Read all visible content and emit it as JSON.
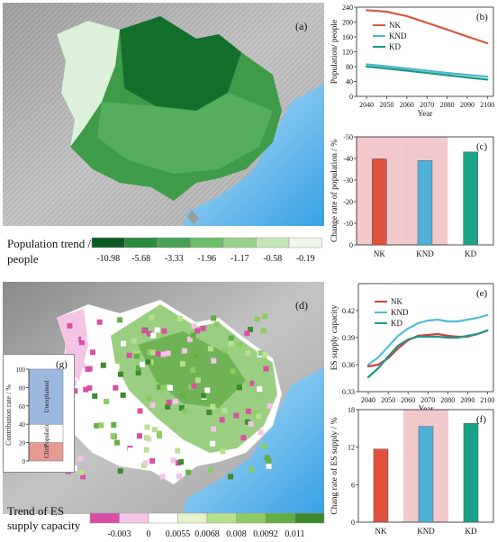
{
  "panels": {
    "a": "(a)",
    "b": "(b)",
    "c": "(c)",
    "d": "(d)",
    "e": "(e)",
    "f": "(f)",
    "g": "(g)"
  },
  "legend_pop": {
    "title_line1": "Population trend /",
    "title_line2": "people",
    "colors": [
      "#0b5a24",
      "#2b8a3e",
      "#46a055",
      "#6cbd6a",
      "#98d38c",
      "#c5e6bb",
      "#eef7ea"
    ],
    "ticks": [
      "-10.98",
      "-5.68",
      "-3.33",
      "-1.96",
      "-1.17",
      "-0.58",
      "-0.19"
    ]
  },
  "legend_es": {
    "title_line1": "Trend of ES",
    "title_line2": "supply capacity",
    "colors": [
      "#d94fa6",
      "#f6c4e6",
      "#ffffff",
      "#e4f2c8",
      "#b9e08f",
      "#8ccc62",
      "#63ae43",
      "#3b8a2c"
    ],
    "ticks": [
      "-0.003",
      "0",
      "0.0055",
      "0.0068",
      "0.008",
      "0.0092",
      "0.011"
    ]
  },
  "inset_g": {
    "ylabel": "Contribution rate / %",
    "ticks": [
      "0",
      "20",
      "40",
      "60",
      "80",
      "100"
    ],
    "segments": [
      {
        "label": "Clim",
        "value": 20,
        "color": "#e59a94"
      },
      {
        "label": "Population",
        "value": 20,
        "color": "#ffffff"
      },
      {
        "label": "Unexplained",
        "value": 60,
        "color": "#9db7df"
      }
    ]
  },
  "chart_data": [
    {
      "panel": "b",
      "type": "line",
      "xlabel": "Year",
      "ylabel": "Population/ people",
      "xlim": [
        2035,
        2103
      ],
      "ylim": [
        0,
        240
      ],
      "xticks": [
        2040,
        2050,
        2060,
        2070,
        2080,
        2090,
        2100
      ],
      "yticks": [
        0,
        40,
        80,
        120,
        160,
        200,
        240
      ],
      "legend_position": "top-right",
      "series": [
        {
          "name": "NK",
          "color": "#d65a44",
          "x": [
            2040,
            2050,
            2060,
            2070,
            2080,
            2090,
            2100
          ],
          "y": [
            232,
            228,
            216,
            198,
            180,
            161,
            143
          ]
        },
        {
          "name": "KND",
          "color": "#4fb6d0",
          "x": [
            2040,
            2050,
            2060,
            2070,
            2080,
            2090,
            2100
          ],
          "y": [
            86,
            81,
            75,
            69,
            63,
            58,
            53
          ]
        },
        {
          "name": "KD",
          "color": "#1a9a84",
          "x": [
            2040,
            2050,
            2060,
            2070,
            2080,
            2090,
            2100
          ],
          "y": [
            80,
            75,
            69,
            63,
            57,
            51,
            45
          ]
        }
      ]
    },
    {
      "panel": "c",
      "type": "bar",
      "ylabel": "Change rate of population / %",
      "ylim": [
        0,
        -50
      ],
      "yticks": [
        0,
        -10,
        -20,
        -30,
        -40,
        -50
      ],
      "categories": [
        "NK",
        "KND",
        "KD"
      ],
      "values": [
        -39.8,
        -39.0,
        -43.0
      ],
      "colors": [
        "#e0513c",
        "#4fb1d8",
        "#18a388"
      ],
      "shaded": [
        "NK",
        "KND"
      ]
    },
    {
      "panel": "e",
      "type": "line",
      "xlabel": "Year",
      "ylabel": "ES supply capacity",
      "xlim": [
        2035,
        2103
      ],
      "ylim": [
        0.33,
        0.45
      ],
      "xticks": [
        2040,
        2050,
        2060,
        2070,
        2080,
        2090,
        2100
      ],
      "yticks": [
        0.33,
        0.36,
        0.39,
        0.42
      ],
      "legend_position": "top-right",
      "series": [
        {
          "name": "NK",
          "color": "#d64040",
          "x": [
            2040,
            2045,
            2050,
            2055,
            2060,
            2065,
            2070,
            2075,
            2080,
            2085,
            2090,
            2095,
            2100
          ],
          "y": [
            0.358,
            0.36,
            0.367,
            0.378,
            0.387,
            0.392,
            0.393,
            0.394,
            0.392,
            0.391,
            0.391,
            0.394,
            0.398
          ]
        },
        {
          "name": "KND",
          "color": "#52bcd8",
          "x": [
            2040,
            2045,
            2050,
            2055,
            2060,
            2065,
            2070,
            2075,
            2080,
            2085,
            2090,
            2095,
            2100
          ],
          "y": [
            0.36,
            0.368,
            0.38,
            0.392,
            0.4,
            0.406,
            0.409,
            0.41,
            0.408,
            0.408,
            0.41,
            0.412,
            0.415
          ]
        },
        {
          "name": "KD",
          "color": "#1a9a84",
          "x": [
            2040,
            2045,
            2050,
            2055,
            2060,
            2065,
            2070,
            2075,
            2080,
            2085,
            2090,
            2095,
            2100
          ],
          "y": [
            0.346,
            0.356,
            0.369,
            0.381,
            0.388,
            0.391,
            0.391,
            0.391,
            0.39,
            0.39,
            0.392,
            0.394,
            0.398
          ]
        }
      ]
    },
    {
      "panel": "f",
      "type": "bar",
      "ylabel": "Chang rate of ES supply / %",
      "ylim": [
        0,
        18
      ],
      "yticks": [
        0,
        6,
        12,
        18
      ],
      "categories": [
        "NK",
        "KND",
        "KD"
      ],
      "values": [
        11.7,
        15.3,
        15.8
      ],
      "colors": [
        "#e0513c",
        "#4fb1d8",
        "#18a388"
      ],
      "shaded": [
        "KND"
      ]
    }
  ]
}
